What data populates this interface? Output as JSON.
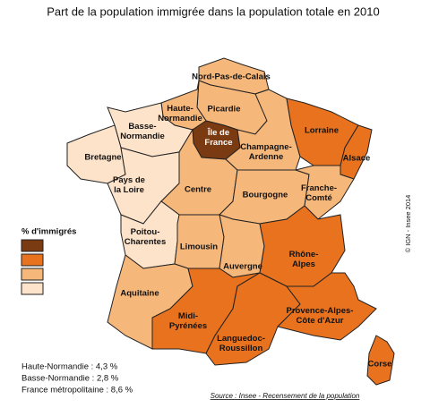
{
  "title": "Part de la population immigrée dans la population totale en 2010",
  "legend": {
    "title": "% d'immigrés",
    "colors": [
      "#7b3b12",
      "#e8721e",
      "#f6b77b",
      "#fde3ca"
    ]
  },
  "regions": [
    {
      "label": [
        "Nord-Pas-de-Calais"
      ],
      "class": 2
    },
    {
      "label": [
        "Picardie"
      ],
      "class": 2
    },
    {
      "label": [
        "Haute-",
        "Normandie"
      ],
      "class": 2
    },
    {
      "label": [
        "Île de",
        "France"
      ],
      "class": 0
    },
    {
      "label": [
        "Basse-",
        "Normandie"
      ],
      "class": 3
    },
    {
      "label": [
        "Bretagne"
      ],
      "class": 3
    },
    {
      "label": [
        "Pays de",
        "la Loire"
      ],
      "class": 3
    },
    {
      "label": [
        "Centre"
      ],
      "class": 2
    },
    {
      "label": [
        "Poitou-",
        "Charentes"
      ],
      "class": 3
    },
    {
      "label": [
        "Limousin"
      ],
      "class": 2
    },
    {
      "label": [
        "Champagne-",
        "Ardenne"
      ],
      "class": 2
    },
    {
      "label": [
        "Lorraine"
      ],
      "class": 1
    },
    {
      "label": [
        "Alsace"
      ],
      "class": 1
    },
    {
      "label": [
        "Bourgogne"
      ],
      "class": 2
    },
    {
      "label": [
        "Franche-",
        "Comté"
      ],
      "class": 2
    },
    {
      "label": [
        "Auvergne"
      ],
      "class": 2
    },
    {
      "label": [
        "Rhône-",
        "Alpes"
      ],
      "class": 1
    },
    {
      "label": [
        "Aquitaine"
      ],
      "class": 2
    },
    {
      "label": [
        "Midi-",
        "Pyrénées"
      ],
      "class": 1
    },
    {
      "label": [
        "Languedoc-",
        "Roussillon"
      ],
      "class": 1
    },
    {
      "label": [
        "Provence-Alpes-",
        "Côte d'Azur"
      ],
      "class": 1
    },
    {
      "label": [
        "Corse"
      ],
      "class": 1
    }
  ],
  "notes": [
    "Haute-Normandie : 4,3 %",
    "Basse-Normandie : 2,8 %",
    "France métropolitaine : 8,6 %"
  ],
  "source": "Source : Insee - Recensement de la population",
  "copyright": "© IGN - Insee 2014"
}
